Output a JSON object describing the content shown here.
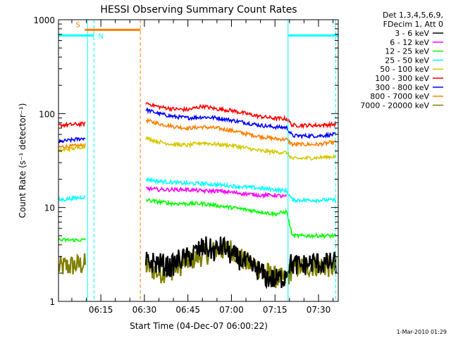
{
  "chart_data": {
    "type": "line",
    "title": "HESSI Observing Summary Count Rates",
    "xlabel": "Start Time (04-Dec-07 06:00:22)",
    "ylabel": "Count Rate (s⁻¹ detector⁻¹)",
    "x_unit": "minutes after 06:00",
    "xlim": [
      0.4,
      96.8
    ],
    "ylim": [
      1,
      1000
    ],
    "y_scale": "log",
    "x_ticks": [
      {
        "value": 15,
        "label": "06:15"
      },
      {
        "value": 30,
        "label": "06:30"
      },
      {
        "value": 45,
        "label": "06:45"
      },
      {
        "value": 60,
        "label": "07:00"
      },
      {
        "value": 75,
        "label": "07:15"
      },
      {
        "value": 90,
        "label": "07:30"
      }
    ],
    "y_ticks": [
      {
        "value": 1,
        "label": "1"
      },
      {
        "value": 10,
        "label": "10"
      },
      {
        "value": 100,
        "label": "100"
      },
      {
        "value": 1000,
        "label": "1000"
      }
    ],
    "legend": {
      "header": [
        "Det 1,3,4,5,6,9,",
        "FDecim 1, Att 0"
      ],
      "placement": "right"
    },
    "timestamp": "1-Mar-2010 01:29",
    "markers": [
      {
        "label": "S",
        "color": "#ff7f00",
        "x_start": 9.5,
        "x_end": 28.6,
        "y": 780
      },
      {
        "label": "N",
        "color": "#00ffff",
        "segments": [
          [
            0.4,
            12.6
          ],
          [
            79.5,
            96.8
          ]
        ],
        "y": 680
      }
    ],
    "vlines": [
      {
        "x": 10.4,
        "color": "#00ffff",
        "style": "solid"
      },
      {
        "x": 12.6,
        "color": "#00ffff",
        "style": "dashed"
      },
      {
        "x": 28.6,
        "color": "#ff7f00",
        "style": "dashed"
      },
      {
        "x": 79.5,
        "color": "#00ffff",
        "style": "solid"
      },
      {
        "x": 95.9,
        "color": "#00ffff",
        "style": "dashed"
      }
    ],
    "series": [
      {
        "name": "3 - 6 keV",
        "color": "#000000",
        "points": [
          [
            30.5,
            2.6
          ],
          [
            33,
            2.6
          ],
          [
            36,
            2.5
          ],
          [
            39,
            2.3
          ],
          [
            42,
            2.8
          ],
          [
            45,
            2.9
          ],
          [
            48,
            3.4
          ],
          [
            51,
            3.8
          ],
          [
            54,
            3.4
          ],
          [
            57,
            3.9
          ],
          [
            60,
            3.1
          ],
          [
            63,
            2.8
          ],
          [
            66,
            2.4
          ],
          [
            69,
            2.2
          ],
          [
            72,
            1.8
          ],
          [
            75,
            1.7
          ],
          [
            78,
            1.8
          ],
          [
            80,
            2.5
          ],
          [
            84,
            2.4
          ],
          [
            88,
            2.6
          ],
          [
            92,
            2.5
          ],
          [
            96,
            2.6
          ]
        ]
      },
      {
        "name": "6 - 12 keV",
        "color": "#ff00ff",
        "points": [
          [
            30.5,
            16
          ],
          [
            35,
            15.5
          ],
          [
            40,
            15.5
          ],
          [
            45,
            15.5
          ],
          [
            50,
            15
          ],
          [
            55,
            15
          ],
          [
            60,
            14.5
          ],
          [
            65,
            14
          ],
          [
            70,
            13.5
          ],
          [
            75,
            13.5
          ],
          [
            79,
            13
          ]
        ]
      },
      {
        "name": "12 - 25 keV",
        "color": "#00ff00",
        "points": [
          [
            0.4,
            4.5
          ],
          [
            9.8,
            4.5
          ],
          [
            30.5,
            12
          ],
          [
            35,
            11.5
          ],
          [
            40,
            11
          ],
          [
            45,
            11
          ],
          [
            50,
            11
          ],
          [
            55,
            10.5
          ],
          [
            60,
            10
          ],
          [
            65,
            9.5
          ],
          [
            70,
            9
          ],
          [
            75,
            8.5
          ],
          [
            79,
            9
          ],
          [
            81,
            5
          ],
          [
            90,
            5
          ],
          [
            96,
            5
          ]
        ]
      },
      {
        "name": "25 - 50 keV",
        "color": "#00ffff",
        "points": [
          [
            0.4,
            12
          ],
          [
            9.8,
            13
          ],
          [
            30.5,
            20
          ],
          [
            35,
            19
          ],
          [
            40,
            18.5
          ],
          [
            45,
            18
          ],
          [
            50,
            18
          ],
          [
            55,
            17.5
          ],
          [
            60,
            17
          ],
          [
            65,
            16.5
          ],
          [
            70,
            16
          ],
          [
            75,
            15.5
          ],
          [
            79,
            15
          ],
          [
            81,
            12
          ],
          [
            90,
            12
          ],
          [
            96,
            12
          ]
        ]
      },
      {
        "name": "50 - 100 keV",
        "color": "#d4c800",
        "points": [
          [
            0.4,
            40
          ],
          [
            9.8,
            45
          ],
          [
            30.5,
            55
          ],
          [
            35,
            50
          ],
          [
            40,
            47
          ],
          [
            45,
            46
          ],
          [
            50,
            49
          ],
          [
            55,
            47
          ],
          [
            60,
            46
          ],
          [
            65,
            43
          ],
          [
            70,
            40
          ],
          [
            75,
            39
          ],
          [
            79,
            38.5
          ],
          [
            81,
            33
          ],
          [
            90,
            34
          ],
          [
            96,
            35
          ]
        ]
      },
      {
        "name": "100 - 300 keV",
        "color": "#ff0000",
        "points": [
          [
            0.4,
            75
          ],
          [
            9.8,
            78
          ],
          [
            30.5,
            130
          ],
          [
            35,
            118
          ],
          [
            40,
            112
          ],
          [
            45,
            110
          ],
          [
            50,
            120
          ],
          [
            55,
            112
          ],
          [
            60,
            108
          ],
          [
            65,
            100
          ],
          [
            70,
            93
          ],
          [
            75,
            89
          ],
          [
            79,
            88
          ],
          [
            81,
            75
          ],
          [
            90,
            75
          ],
          [
            96,
            77
          ]
        ]
      },
      {
        "name": "300 - 800 keV",
        "color": "#0000ff",
        "points": [
          [
            0.4,
            50
          ],
          [
            9.8,
            55
          ],
          [
            30.5,
            110
          ],
          [
            35,
            100
          ],
          [
            40,
            93
          ],
          [
            45,
            90
          ],
          [
            50,
            92
          ],
          [
            55,
            90
          ],
          [
            60,
            85
          ],
          [
            65,
            80
          ],
          [
            70,
            75
          ],
          [
            75,
            72
          ],
          [
            79,
            71
          ],
          [
            81,
            58
          ],
          [
            90,
            58
          ],
          [
            96,
            60
          ]
        ]
      },
      {
        "name": "800 - 7000 keV",
        "color": "#ff7f00",
        "points": [
          [
            0.4,
            44
          ],
          [
            9.8,
            46
          ],
          [
            30.5,
            85
          ],
          [
            35,
            78
          ],
          [
            40,
            73
          ],
          [
            45,
            70
          ],
          [
            50,
            72
          ],
          [
            55,
            70
          ],
          [
            60,
            66
          ],
          [
            65,
            61
          ],
          [
            70,
            57
          ],
          [
            75,
            54
          ],
          [
            79,
            53
          ],
          [
            81,
            47
          ],
          [
            90,
            47
          ],
          [
            96,
            50
          ]
        ]
      },
      {
        "name": "7000 - 20000 keV",
        "color": "#808000",
        "points": [
          [
            0.4,
            2.3
          ],
          [
            9.8,
            2.5
          ],
          [
            30.5,
            2.4
          ],
          [
            35,
            2.0
          ],
          [
            40,
            2.2
          ],
          [
            45,
            2.7
          ],
          [
            50,
            3.1
          ],
          [
            55,
            3.5
          ],
          [
            60,
            3.6
          ],
          [
            65,
            2.6
          ],
          [
            70,
            2.2
          ],
          [
            75,
            1.8
          ],
          [
            79,
            1.7
          ],
          [
            81,
            2.3
          ],
          [
            90,
            2.4
          ],
          [
            96,
            2.3
          ]
        ]
      }
    ]
  }
}
